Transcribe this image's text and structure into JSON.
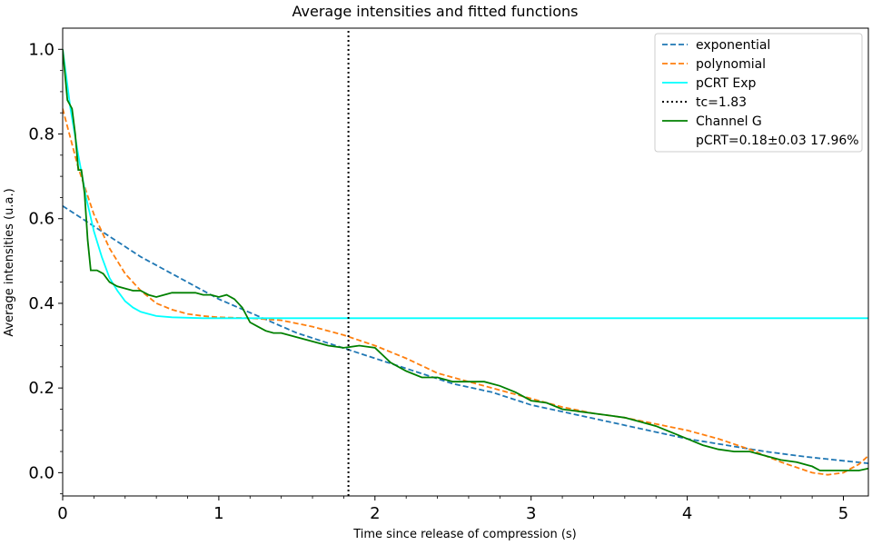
{
  "chart_data": {
    "type": "line",
    "title": "Average intensities and fitted functions",
    "xlabel": "Time since release of compression (s)",
    "ylabel": "Average intensities (u.a.)",
    "xlim": [
      0,
      5.16
    ],
    "ylim": [
      -0.055,
      1.05
    ],
    "xticks": [
      "0",
      "1",
      "2",
      "3",
      "4",
      "5"
    ],
    "yticks": [
      "0.0",
      "0.2",
      "0.4",
      "0.6",
      "0.8",
      "1.0"
    ],
    "grid": false,
    "legend_position": "top-right",
    "series": [
      {
        "name": "exponential",
        "color": "#1f77b4",
        "style": "dashed",
        "x": [
          0,
          0.25,
          0.5,
          0.75,
          1.0,
          1.25,
          1.5,
          1.75,
          2.0,
          2.25,
          2.5,
          2.75,
          3.0,
          3.25,
          3.5,
          3.75,
          4.0,
          4.25,
          4.5,
          4.75,
          5.0,
          5.16
        ],
        "y": [
          0.63,
          0.57,
          0.51,
          0.46,
          0.41,
          0.37,
          0.33,
          0.3,
          0.27,
          0.24,
          0.21,
          0.19,
          0.16,
          0.14,
          0.12,
          0.1,
          0.08,
          0.065,
          0.05,
          0.038,
          0.028,
          0.022
        ]
      },
      {
        "name": "polynomial",
        "color": "#ff7f0e",
        "style": "dashed",
        "x": [
          0,
          0.1,
          0.2,
          0.3,
          0.4,
          0.5,
          0.6,
          0.7,
          0.8,
          0.9,
          1.0,
          1.2,
          1.4,
          1.6,
          1.8,
          2.0,
          2.2,
          2.4,
          2.6,
          2.8,
          3.0,
          3.2,
          3.4,
          3.6,
          3.8,
          4.0,
          4.2,
          4.4,
          4.6,
          4.8,
          4.9,
          5.0,
          5.1,
          5.16
        ],
        "y": [
          0.86,
          0.72,
          0.61,
          0.53,
          0.47,
          0.43,
          0.4,
          0.385,
          0.375,
          0.37,
          0.367,
          0.365,
          0.36,
          0.345,
          0.325,
          0.3,
          0.27,
          0.235,
          0.215,
          0.195,
          0.175,
          0.155,
          0.14,
          0.13,
          0.115,
          0.1,
          0.08,
          0.055,
          0.025,
          0.0,
          -0.005,
          0.0,
          0.02,
          0.04
        ]
      },
      {
        "name": "pCRT Exp",
        "color": "#00ffff",
        "style": "solid",
        "x": [
          0,
          0.05,
          0.1,
          0.15,
          0.2,
          0.25,
          0.3,
          0.35,
          0.4,
          0.45,
          0.5,
          0.55,
          0.6,
          0.7,
          0.8,
          0.9,
          1.0,
          1.2,
          1.5,
          2.0,
          3.0,
          4.0,
          5.16
        ],
        "y": [
          1.0,
          0.86,
          0.75,
          0.65,
          0.57,
          0.51,
          0.46,
          0.43,
          0.405,
          0.39,
          0.38,
          0.375,
          0.37,
          0.367,
          0.366,
          0.365,
          0.365,
          0.365,
          0.365,
          0.365,
          0.365,
          0.365,
          0.365
        ]
      },
      {
        "name": "tc=1.83",
        "color": "#000000",
        "style": "dotted",
        "x": [
          1.83,
          1.83
        ],
        "y": [
          -0.055,
          1.05
        ]
      },
      {
        "name": "Channel G",
        "color": "#008000",
        "style": "solid",
        "x": [
          0,
          0.03,
          0.06,
          0.08,
          0.1,
          0.12,
          0.14,
          0.16,
          0.18,
          0.2,
          0.22,
          0.26,
          0.3,
          0.35,
          0.4,
          0.45,
          0.5,
          0.55,
          0.6,
          0.65,
          0.7,
          0.75,
          0.8,
          0.85,
          0.9,
          0.95,
          1.0,
          1.05,
          1.1,
          1.15,
          1.2,
          1.25,
          1.3,
          1.35,
          1.4,
          1.5,
          1.6,
          1.7,
          1.8,
          1.9,
          2.0,
          2.1,
          2.2,
          2.3,
          2.4,
          2.5,
          2.6,
          2.7,
          2.8,
          2.9,
          3.0,
          3.1,
          3.2,
          3.3,
          3.4,
          3.5,
          3.6,
          3.7,
          3.8,
          3.9,
          4.0,
          4.1,
          4.2,
          4.3,
          4.4,
          4.5,
          4.6,
          4.7,
          4.8,
          4.85,
          4.9,
          5.0,
          5.1,
          5.16
        ],
        "y": [
          1.0,
          0.88,
          0.86,
          0.8,
          0.715,
          0.715,
          0.66,
          0.55,
          0.478,
          0.478,
          0.478,
          0.47,
          0.45,
          0.44,
          0.435,
          0.43,
          0.43,
          0.42,
          0.415,
          0.42,
          0.425,
          0.425,
          0.425,
          0.425,
          0.42,
          0.42,
          0.415,
          0.42,
          0.41,
          0.39,
          0.355,
          0.345,
          0.335,
          0.33,
          0.33,
          0.32,
          0.31,
          0.3,
          0.295,
          0.3,
          0.295,
          0.26,
          0.24,
          0.225,
          0.225,
          0.215,
          0.215,
          0.215,
          0.205,
          0.19,
          0.17,
          0.165,
          0.15,
          0.145,
          0.14,
          0.135,
          0.13,
          0.12,
          0.11,
          0.095,
          0.08,
          0.065,
          0.055,
          0.05,
          0.05,
          0.04,
          0.03,
          0.025,
          0.015,
          0.005,
          0.005,
          0.005,
          0.005,
          0.01
        ]
      }
    ],
    "legend_extra": "pCRT=0.18±0.03 17.96%"
  }
}
